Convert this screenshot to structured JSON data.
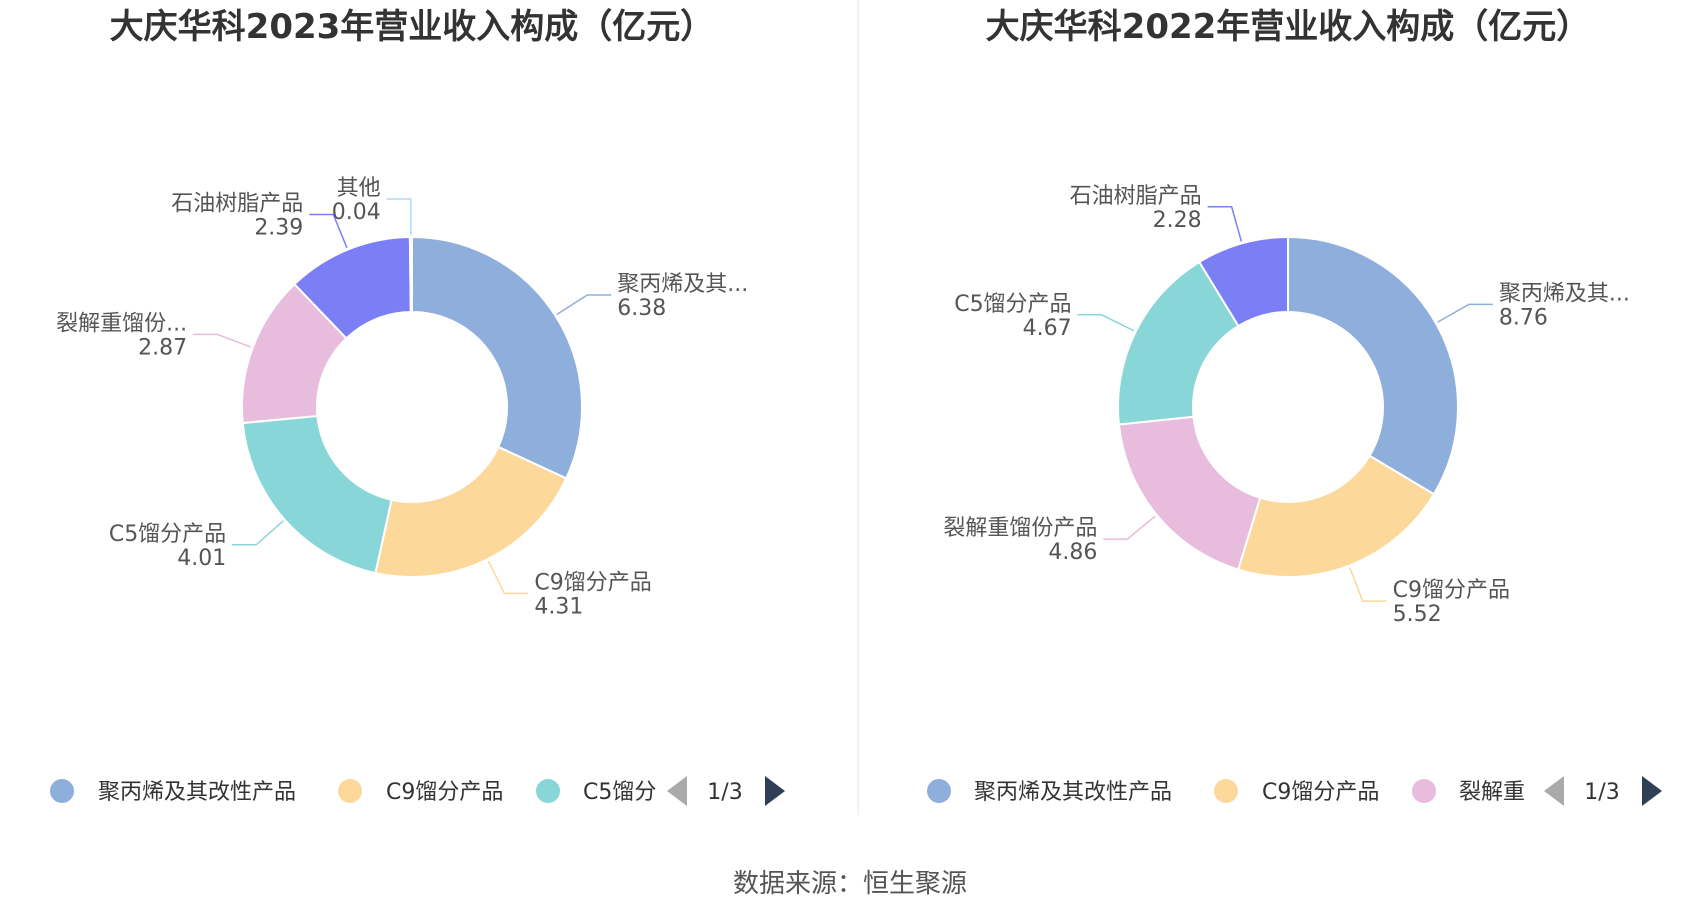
{
  "chart_data": [
    {
      "type": "pie",
      "title": "大庆华科2023年营业收入构成（亿元）",
      "series": [
        {
          "name": "聚丙烯及其改性产品",
          "label": "聚丙烯及其...",
          "value": 6.38,
          "display": "6.38",
          "color": "#8eaedb"
        },
        {
          "name": "C9馏分产品",
          "label": "C9馏分产品",
          "value": 4.31,
          "display": "4.31",
          "color": "#fdd89b"
        },
        {
          "name": "C5馏分产品",
          "label": "C5馏分产品",
          "value": 4.01,
          "display": "4.01",
          "color": "#88d6d8"
        },
        {
          "name": "裂解重馏份产品",
          "label": "裂解重馏份...",
          "value": 2.87,
          "display": "2.87",
          "color": "#e8bcdc"
        },
        {
          "name": "石油树脂产品",
          "label": "石油树脂产品",
          "value": 2.39,
          "display": "2.39",
          "color": "#7b7ff5"
        },
        {
          "name": "其他",
          "label": "其他",
          "value": 0.04,
          "display": "0.04",
          "color": "#a9def2"
        }
      ],
      "legend": {
        "items": [
          "聚丙烯及其改性产品",
          "C9馏分产品",
          "C5馏分"
        ],
        "page": "1/3"
      }
    },
    {
      "type": "pie",
      "title": "大庆华科2022年营业收入构成（亿元）",
      "series": [
        {
          "name": "聚丙烯及其改性产品",
          "label": "聚丙烯及其...",
          "value": 8.76,
          "display": "8.76",
          "color": "#8eaedb"
        },
        {
          "name": "C9馏分产品",
          "label": "C9馏分产品",
          "value": 5.52,
          "display": "5.52",
          "color": "#fdd89b"
        },
        {
          "name": "裂解重馏份产品",
          "label": "裂解重馏份产品",
          "value": 4.86,
          "display": "4.86",
          "color": "#e8bcdc"
        },
        {
          "name": "C5馏分产品",
          "label": "C5馏分产品",
          "value": 4.67,
          "display": "4.67",
          "color": "#88d6d8"
        },
        {
          "name": "石油树脂产品",
          "label": "石油树脂产品",
          "value": 2.28,
          "display": "2.28",
          "color": "#7b7ff5"
        }
      ],
      "legend": {
        "items": [
          "聚丙烯及其改性产品",
          "C9馏分产品",
          "裂解重"
        ],
        "page": "1/3"
      }
    }
  ],
  "source": "数据来源：恒生聚源"
}
